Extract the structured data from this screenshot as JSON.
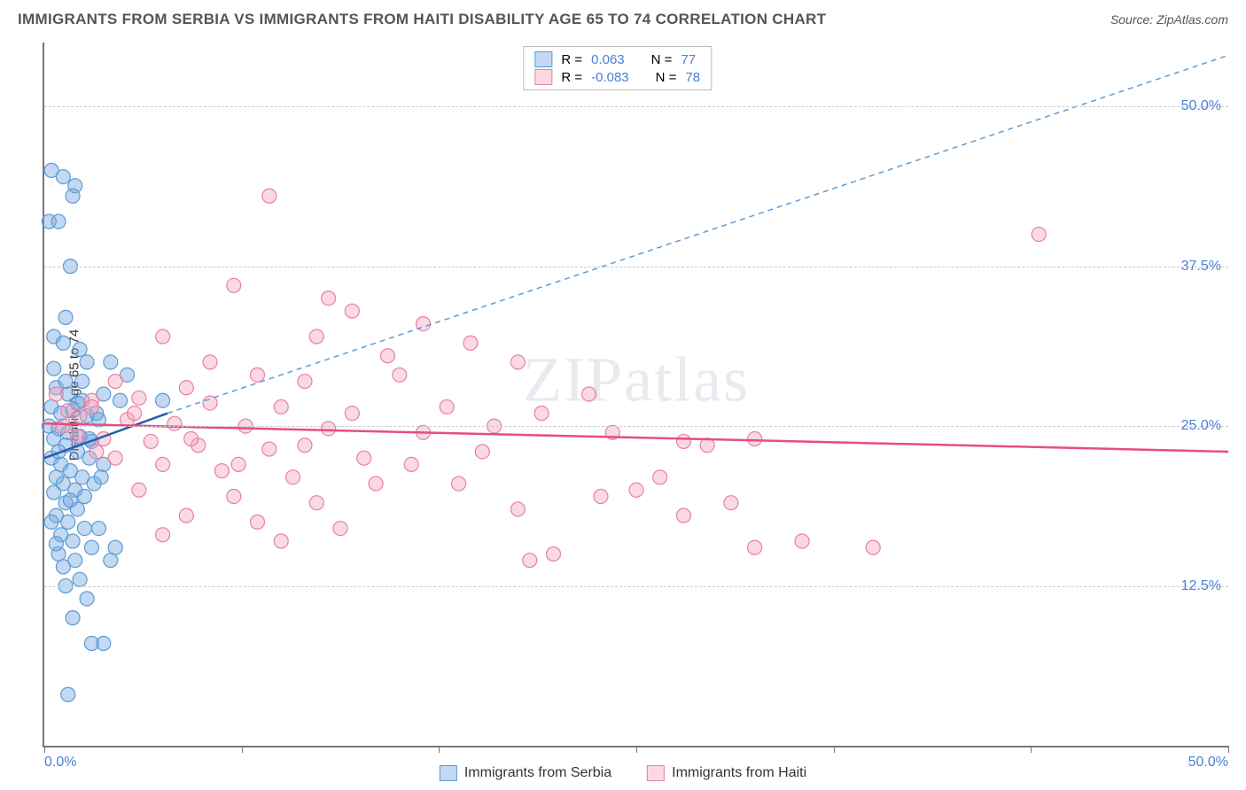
{
  "header": {
    "title": "IMMIGRANTS FROM SERBIA VS IMMIGRANTS FROM HAITI DISABILITY AGE 65 TO 74 CORRELATION CHART",
    "source_prefix": "Source: ",
    "source_name": "ZipAtlas.com"
  },
  "watermark": {
    "zip": "ZIP",
    "atlas": "atlas"
  },
  "chart": {
    "type": "scatter",
    "ylabel": "Disability Age 65 to 74",
    "xlim": [
      0,
      50
    ],
    "ylim": [
      0,
      55
    ],
    "xtick_positions": [
      0,
      8.33,
      16.67,
      25,
      33.33,
      41.67,
      50
    ],
    "xtick_labels": {
      "first": "0.0%",
      "last": "50.0%"
    },
    "ytick_positions": [
      12.5,
      25.0,
      37.5,
      50.0
    ],
    "ytick_labels": [
      "12.5%",
      "25.0%",
      "37.5%",
      "50.0%"
    ],
    "grid_color": "#cccccc",
    "axis_color": "#777777",
    "background_color": "#ffffff",
    "ytick_label_color": "#4a7fd6",
    "xtick_label_color": "#4a7fd6",
    "marker_radius": 8,
    "series": [
      {
        "name": "Immigrants from Serbia",
        "color_fill": "rgba(120,170,225,0.45)",
        "color_stroke": "#5a9bd5",
        "R": "0.063",
        "N": "77",
        "trend": {
          "x1": 0,
          "y1": 22.5,
          "x2": 5.2,
          "y2": 26,
          "stroke": "#2a5ca8",
          "width": 2.5,
          "dash": "none"
        },
        "extrap": {
          "x1": 5.2,
          "y1": 26,
          "x2": 50,
          "y2": 54,
          "stroke": "#5a9bd5",
          "width": 1.5,
          "dash": "6,5"
        },
        "points": [
          [
            0.3,
            45
          ],
          [
            0.8,
            44.5
          ],
          [
            1.3,
            43.8
          ],
          [
            1.2,
            43
          ],
          [
            0.2,
            41
          ],
          [
            0.6,
            41
          ],
          [
            1.1,
            37.5
          ],
          [
            0.9,
            33.5
          ],
          [
            0.4,
            32
          ],
          [
            1.5,
            31
          ],
          [
            1.8,
            30
          ],
          [
            2.8,
            30
          ],
          [
            3.5,
            29
          ],
          [
            0.5,
            28
          ],
          [
            1.0,
            27.5
          ],
          [
            1.6,
            27
          ],
          [
            2.5,
            27.5
          ],
          [
            3.2,
            27
          ],
          [
            0.3,
            26.5
          ],
          [
            0.7,
            26
          ],
          [
            1.2,
            26.2
          ],
          [
            1.8,
            25.8
          ],
          [
            2.3,
            25.5
          ],
          [
            0.2,
            25
          ],
          [
            0.6,
            24.8
          ],
          [
            1.0,
            24.5
          ],
          [
            1.5,
            24.2
          ],
          [
            2.0,
            23.8
          ],
          [
            0.4,
            24
          ],
          [
            0.9,
            23.5
          ],
          [
            1.4,
            23
          ],
          [
            1.9,
            22.5
          ],
          [
            2.5,
            22
          ],
          [
            0.3,
            22.5
          ],
          [
            0.7,
            22
          ],
          [
            1.1,
            21.5
          ],
          [
            1.6,
            21
          ],
          [
            2.1,
            20.5
          ],
          [
            0.5,
            21
          ],
          [
            0.8,
            20.5
          ],
          [
            1.3,
            20
          ],
          [
            1.7,
            19.5
          ],
          [
            0.4,
            19.8
          ],
          [
            0.9,
            19
          ],
          [
            1.4,
            18.5
          ],
          [
            0.5,
            18
          ],
          [
            1.0,
            17.5
          ],
          [
            1.7,
            17
          ],
          [
            2.3,
            17
          ],
          [
            0.7,
            16.5
          ],
          [
            1.2,
            16
          ],
          [
            2.0,
            15.5
          ],
          [
            3.0,
            15.5
          ],
          [
            0.6,
            15
          ],
          [
            1.3,
            14.5
          ],
          [
            2.8,
            14.5
          ],
          [
            0.8,
            14
          ],
          [
            1.5,
            13
          ],
          [
            0.9,
            12.5
          ],
          [
            1.8,
            11.5
          ],
          [
            1.2,
            10
          ],
          [
            2.0,
            8
          ],
          [
            2.5,
            8
          ],
          [
            1.0,
            4
          ],
          [
            0.4,
            29.5
          ],
          [
            0.9,
            28.5
          ],
          [
            1.4,
            26.8
          ],
          [
            0.6,
            23
          ],
          [
            1.1,
            19.2
          ],
          [
            0.5,
            15.8
          ],
          [
            1.6,
            28.5
          ],
          [
            2.2,
            26
          ],
          [
            1.9,
            24
          ],
          [
            2.4,
            21
          ],
          [
            0.3,
            17.5
          ],
          [
            0.8,
            31.5
          ],
          [
            5.0,
            27
          ]
        ]
      },
      {
        "name": "Immigrants from Haiti",
        "color_fill": "rgba(245,160,185,0.40)",
        "color_stroke": "#e87fa3",
        "R": "-0.083",
        "N": "78",
        "trend": {
          "x1": 0,
          "y1": 25.2,
          "x2": 50,
          "y2": 23,
          "stroke": "#e84c82",
          "width": 2.5,
          "dash": "none"
        },
        "points": [
          [
            9.5,
            43
          ],
          [
            42,
            40
          ],
          [
            8,
            36
          ],
          [
            12,
            35
          ],
          [
            18,
            31.5
          ],
          [
            5,
            32
          ],
          [
            14.5,
            30.5
          ],
          [
            20,
            30
          ],
          [
            3,
            28.5
          ],
          [
            6,
            28
          ],
          [
            9,
            29
          ],
          [
            11,
            28.5
          ],
          [
            15,
            29
          ],
          [
            23,
            27.5
          ],
          [
            2,
            27
          ],
          [
            4,
            27.2
          ],
          [
            7,
            26.8
          ],
          [
            10,
            26.5
          ],
          [
            13,
            26
          ],
          [
            17,
            26.5
          ],
          [
            21,
            26
          ],
          [
            1.5,
            25.8
          ],
          [
            3.5,
            25.5
          ],
          [
            5.5,
            25.2
          ],
          [
            8.5,
            25
          ],
          [
            12,
            24.8
          ],
          [
            16,
            24.5
          ],
          [
            19,
            25
          ],
          [
            24,
            24.5
          ],
          [
            27,
            23.8
          ],
          [
            2.5,
            24
          ],
          [
            4.5,
            23.8
          ],
          [
            6.5,
            23.5
          ],
          [
            9.5,
            23.2
          ],
          [
            13.5,
            22.5
          ],
          [
            28,
            23.5
          ],
          [
            30,
            24
          ],
          [
            3,
            22.5
          ],
          [
            5,
            22
          ],
          [
            7.5,
            21.5
          ],
          [
            10.5,
            21
          ],
          [
            14,
            20.5
          ],
          [
            26,
            21
          ],
          [
            4,
            20
          ],
          [
            8,
            19.5
          ],
          [
            11.5,
            19
          ],
          [
            17.5,
            20.5
          ],
          [
            20,
            18.5
          ],
          [
            23.5,
            19.5
          ],
          [
            6,
            18
          ],
          [
            9,
            17.5
          ],
          [
            12.5,
            17
          ],
          [
            27,
            18
          ],
          [
            5,
            16.5
          ],
          [
            10,
            16
          ],
          [
            30,
            15.5
          ],
          [
            32,
            16
          ],
          [
            35,
            15.5
          ],
          [
            20.5,
            14.5
          ],
          [
            21.5,
            15
          ],
          [
            1,
            26.2
          ],
          [
            2,
            26.5
          ],
          [
            0.8,
            25
          ],
          [
            1.4,
            24.2
          ],
          [
            2.2,
            23
          ],
          [
            0.5,
            27.5
          ],
          [
            3.8,
            26
          ],
          [
            6.2,
            24
          ],
          [
            8.2,
            22
          ],
          [
            11,
            23.5
          ],
          [
            15.5,
            22
          ],
          [
            18.5,
            23
          ],
          [
            25,
            20
          ],
          [
            29,
            19
          ],
          [
            16,
            33
          ],
          [
            11.5,
            32
          ],
          [
            7,
            30
          ],
          [
            13,
            34
          ]
        ]
      }
    ],
    "legend_top": {
      "r_label": "R = ",
      "n_label": "N = "
    },
    "legend_bottom": {
      "items": [
        "Immigrants from Serbia",
        "Immigrants from Haiti"
      ]
    }
  }
}
